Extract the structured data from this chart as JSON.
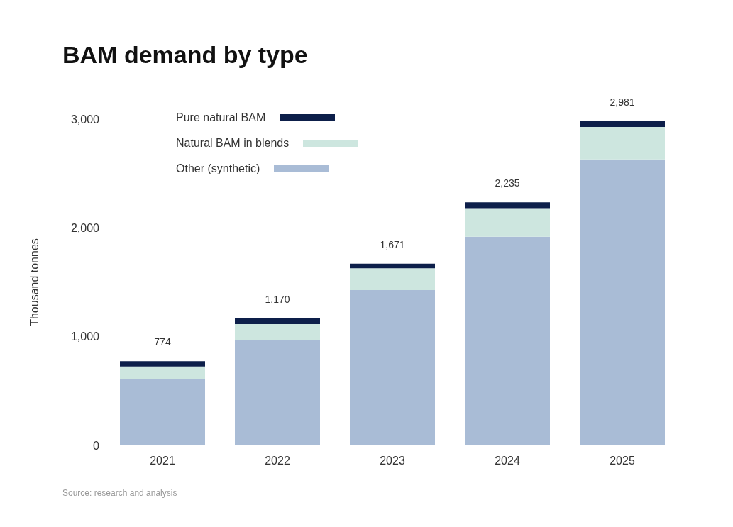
{
  "chart_data": {
    "type": "bar",
    "title": "BAM demand by type",
    "ylabel": "Thousand tonnes",
    "categories": [
      "2021",
      "2022",
      "2023",
      "2024",
      "2025"
    ],
    "stacked": true,
    "series": [
      {
        "name": "Other (synthetic)",
        "color": "#a9bcd6",
        "values": [
          611,
          967,
          1429,
          1919,
          2630
        ]
      },
      {
        "name": "Natural BAM in blends",
        "color": "#cde6df",
        "values": [
          114,
          149,
          199,
          263,
          298
        ]
      },
      {
        "name": "Pure natural BAM",
        "color": "#0d1f4a",
        "values": [
          49,
          54,
          43,
          53,
          53
        ]
      }
    ],
    "totals": [
      "774",
      "1,170",
      "1,671",
      "2,235",
      "2,981"
    ],
    "ylim": [
      0,
      3000
    ],
    "yticks": [
      0,
      {
        "value": 1000,
        "label": "1,000"
      },
      {
        "value": 2000,
        "label": "2,000"
      },
      {
        "value": 3000,
        "label": "3,000"
      }
    ],
    "grid": false,
    "legend": "top left",
    "annotations": [
      "Source: research and analysis"
    ]
  }
}
